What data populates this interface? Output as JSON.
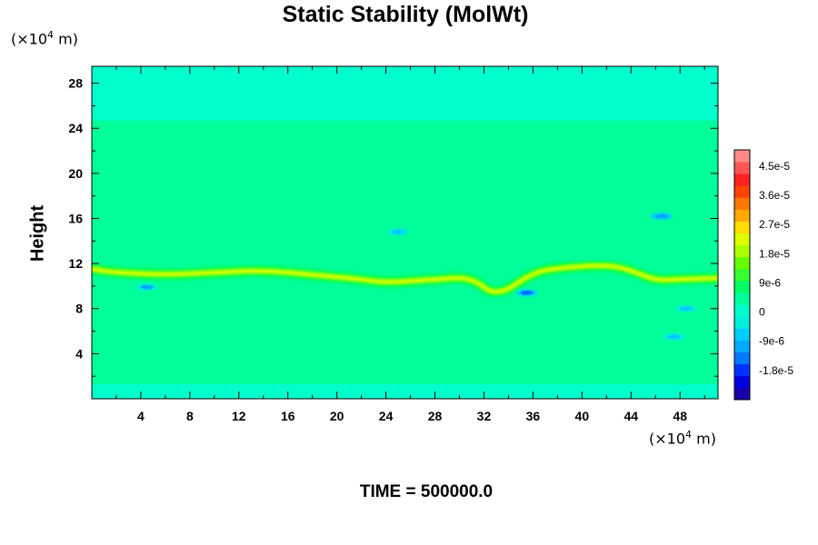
{
  "chart_data": {
    "type": "heatmap",
    "title": "Static Stability (MolWt)",
    "ylabel": "Height",
    "xlabel": "",
    "x_unit": {
      "prefix": "(×10",
      "exponent": "4",
      "suffix": " m)"
    },
    "y_unit": {
      "prefix": "(×10",
      "exponent": "4",
      "suffix": " m)"
    },
    "xlim": [
      0,
      51.1
    ],
    "ylim": [
      0,
      29.5
    ],
    "x_ticks": [
      "4",
      "8",
      "12",
      "16",
      "20",
      "24",
      "28",
      "32",
      "36",
      "40",
      "44",
      "48"
    ],
    "y_ticks": [
      "4",
      "8",
      "12",
      "16",
      "20",
      "24",
      "28"
    ],
    "colorbar": {
      "ticks": [
        "4.5e-5",
        "3.6e-5",
        "2.7e-5",
        "1.8e-5",
        "9e-6",
        "0",
        "-9e-6",
        "-1.8e-5"
      ],
      "range": [
        -2.7e-05,
        5e-05
      ],
      "colors": [
        "#1a00aa",
        "#0000dd",
        "#0033ff",
        "#0077ff",
        "#00aaff",
        "#00ccff",
        "#00eedd",
        "#00ffcc",
        "#00ff99",
        "#00ff66",
        "#33ff33",
        "#66ff00",
        "#aaff00",
        "#ddff00",
        "#ffdd00",
        "#ffaa00",
        "#ff7700",
        "#ff4400",
        "#ff2222",
        "#ff5555",
        "#ff8888"
      ]
    },
    "background_value": 0,
    "band_bottom": 1.3,
    "band_top": 24.7,
    "band_value": 3e-06,
    "ridge": {
      "x": [
        0,
        2,
        6,
        10,
        14,
        18,
        22,
        24,
        28,
        31,
        33,
        36,
        38,
        42,
        44,
        46,
        48,
        51
      ],
      "y": [
        11.5,
        11.2,
        11.0,
        11.2,
        11.4,
        11.0,
        10.6,
        10.3,
        10.6,
        10.8,
        9.0,
        11.2,
        11.6,
        11.9,
        11.4,
        10.5,
        10.6,
        10.7
      ],
      "peak_value": 2.4e-05
    },
    "negative_spots": [
      {
        "x": 35.5,
        "y": 9.4,
        "value": -1.5e-05
      },
      {
        "x": 46.5,
        "y": 16.2,
        "value": -1.2e-05
      },
      {
        "x": 25.0,
        "y": 14.8,
        "value": -8e-06
      },
      {
        "x": 4.5,
        "y": 9.9,
        "value": -1e-05
      },
      {
        "x": 48.5,
        "y": 8.0,
        "value": -8e-06
      },
      {
        "x": 47.5,
        "y": 5.5,
        "value": -7e-06
      }
    ],
    "time_label": "TIME = 500000.0"
  }
}
